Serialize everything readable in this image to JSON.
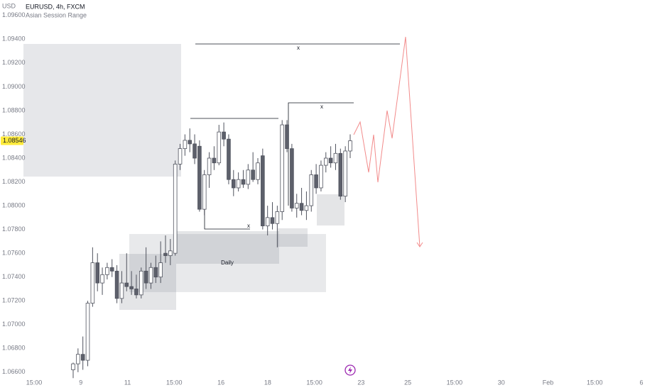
{
  "chart_data": {
    "type": "candlestick",
    "title": "EURUSD, 4h, FXCM",
    "subtitle": "Asian Session Range",
    "y_axis_label": "USD",
    "last_price": {
      "value": 1.08546,
      "label": "1.08546"
    },
    "annotations": [
      "x",
      "x",
      "x",
      "Daily"
    ],
    "xticks": [
      "15:00",
      "9",
      "11",
      "15:00",
      "16",
      "18",
      "15:00",
      "23",
      "25",
      "15:00",
      "30",
      "Feb",
      "15:00",
      "6"
    ],
    "ylim": [
      1.0645,
      1.0973
    ],
    "yticks": [
      {
        "value": 1.066,
        "label": "1.06600"
      },
      {
        "value": 1.068,
        "label": "1.06800"
      },
      {
        "value": 1.07,
        "label": "1.07000"
      },
      {
        "value": 1.072,
        "label": "1.07200"
      },
      {
        "value": 1.074,
        "label": "1.07400"
      },
      {
        "value": 1.076,
        "label": "1.07600"
      },
      {
        "value": 1.078,
        "label": "1.07800"
      },
      {
        "value": 1.08,
        "label": "1.08000"
      },
      {
        "value": 1.082,
        "label": "1.08200"
      },
      {
        "value": 1.084,
        "label": "1.08400"
      },
      {
        "value": 1.086,
        "label": "1.08600"
      },
      {
        "value": 1.088,
        "label": "1.08800"
      },
      {
        "value": 1.09,
        "label": "1.09000"
      },
      {
        "value": 1.092,
        "label": "1.09200"
      },
      {
        "value": 1.094,
        "label": "1.09400"
      },
      {
        "value": 1.096,
        "label": "1.09600"
      }
    ],
    "up_color": "#ffffff",
    "down_color": "#5d606b",
    "wick_color": "#50535e",
    "open": [
      1.0662,
      1.0667,
      1.0675,
      1.067,
      1.0718,
      1.0752,
      1.0735,
      1.0742,
      1.0748,
      1.0745,
      1.0722,
      1.0735,
      1.0732,
      1.073,
      1.0725,
      1.0745,
      1.0735,
      1.0748,
      1.074,
      1.076,
      1.0758,
      1.076,
      1.0835,
      1.0848,
      1.0855,
      1.0852,
      1.085,
      1.0797,
      1.0826,
      1.084,
      1.0836,
      1.0862,
      1.0856,
      1.0822,
      1.0815,
      1.0822,
      1.0818,
      1.083,
      1.0822,
      1.0842,
      1.0783,
      1.079,
      1.0785,
      1.0795,
      1.0868,
      1.0848,
      1.0798,
      1.0802,
      1.0796,
      1.08,
      1.0826,
      1.0815,
      1.0834,
      1.084,
      1.0836,
      1.0844,
      1.0808,
      1.0846
    ],
    "high": [
      1.0668,
      1.068,
      1.069,
      1.072,
      1.0765,
      1.076,
      1.0748,
      1.0752,
      1.0755,
      1.075,
      1.0745,
      1.076,
      1.0745,
      1.0742,
      1.0748,
      1.0765,
      1.0752,
      1.0758,
      1.077,
      1.0775,
      1.0772,
      1.0838,
      1.0852,
      1.086,
      1.0865,
      1.086,
      1.0855,
      1.083,
      1.0845,
      1.085,
      1.0868,
      1.087,
      1.086,
      1.083,
      1.0828,
      1.083,
      1.0835,
      1.0845,
      1.084,
      1.0848,
      1.08,
      1.0803,
      1.08,
      1.0872,
      1.0872,
      1.0852,
      1.081,
      1.0815,
      1.0812,
      1.083,
      1.0835,
      1.0838,
      1.0845,
      1.085,
      1.0852,
      1.0848,
      1.085,
      1.086
    ],
    "low": [
      1.0655,
      1.066,
      1.0662,
      1.0665,
      1.0715,
      1.0728,
      1.0725,
      1.0738,
      1.074,
      1.0718,
      1.0718,
      1.0728,
      1.0725,
      1.0722,
      1.0722,
      1.073,
      1.073,
      1.0735,
      1.0735,
      1.0752,
      1.075,
      1.0758,
      1.083,
      1.0842,
      1.0845,
      1.0835,
      1.0795,
      1.0792,
      1.0815,
      1.083,
      1.0834,
      1.085,
      1.0818,
      1.0808,
      1.0812,
      1.0815,
      1.0814,
      1.082,
      1.0818,
      1.078,
      1.0775,
      1.078,
      1.0765,
      1.0788,
      1.0845,
      1.0795,
      1.079,
      1.0792,
      1.0788,
      1.0795,
      1.081,
      1.0812,
      1.0828,
      1.0832,
      1.083,
      1.0805,
      1.0803,
      1.084
    ],
    "close": [
      1.0667,
      1.0675,
      1.067,
      1.0718,
      1.0752,
      1.0735,
      1.0742,
      1.0748,
      1.0745,
      1.0722,
      1.0735,
      1.0732,
      1.073,
      1.0725,
      1.0745,
      1.0735,
      1.0748,
      1.074,
      1.0752,
      1.0758,
      1.0762,
      1.0835,
      1.0848,
      1.0855,
      1.0852,
      1.084,
      1.0797,
      1.0826,
      1.084,
      1.0836,
      1.0862,
      1.0856,
      1.0822,
      1.0815,
      1.0822,
      1.0818,
      1.083,
      1.0822,
      1.0836,
      1.0783,
      1.079,
      1.0785,
      1.0795,
      1.0868,
      1.0848,
      1.0798,
      1.0802,
      1.0796,
      1.08,
      1.0826,
      1.0815,
      1.0834,
      1.084,
      1.0836,
      1.0844,
      1.0808,
      1.0846,
      1.08546
    ]
  }
}
